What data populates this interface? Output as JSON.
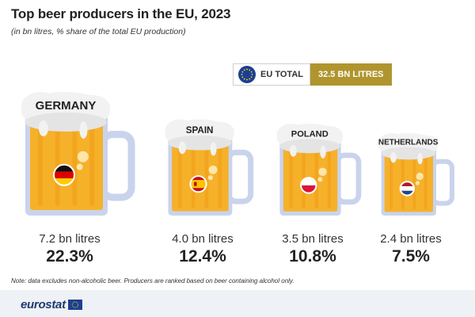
{
  "title": "Top beer producers in the EU, 2023",
  "subtitle": "(in bn litres, % share of the total EU production)",
  "total": {
    "label": "EU TOTAL",
    "value": "32.5 BN LITRES"
  },
  "colors": {
    "beer": "#f6b12a",
    "beer_dark": "#f19a16",
    "glass": "#c9d3ec",
    "foam": "#f2f2f2",
    "total_bg": "#b0952e",
    "eu_blue": "#1b3f94",
    "eu_star": "#ffdd00"
  },
  "chart_data": {
    "type": "pictogram",
    "title": "Top beer producers in the EU, 2023",
    "unit": "bn litres",
    "eu_total_bn_litres": 32.5,
    "categories": [
      "GERMANY",
      "SPAIN",
      "POLAND",
      "NETHERLANDS"
    ],
    "values": [
      7.2,
      4.0,
      3.5,
      2.4
    ],
    "shares_pct": [
      22.3,
      12.4,
      10.8,
      7.5
    ],
    "litres_labels": [
      "7.2 bn litres",
      "4.0 bn litres",
      "3.5 bn litres",
      "2.4 bn litres"
    ],
    "share_labels": [
      "22.3%",
      "12.4%",
      "10.8%",
      "7.5%"
    ],
    "flags": [
      "germany-flag",
      "spain-flag",
      "poland-flag",
      "netherlands-flag"
    ]
  },
  "note": "Note: data excludes non-alcoholic beer. Producers are ranked based on beer containing alcohol only.",
  "footer": {
    "logo_text": "eurostat"
  }
}
